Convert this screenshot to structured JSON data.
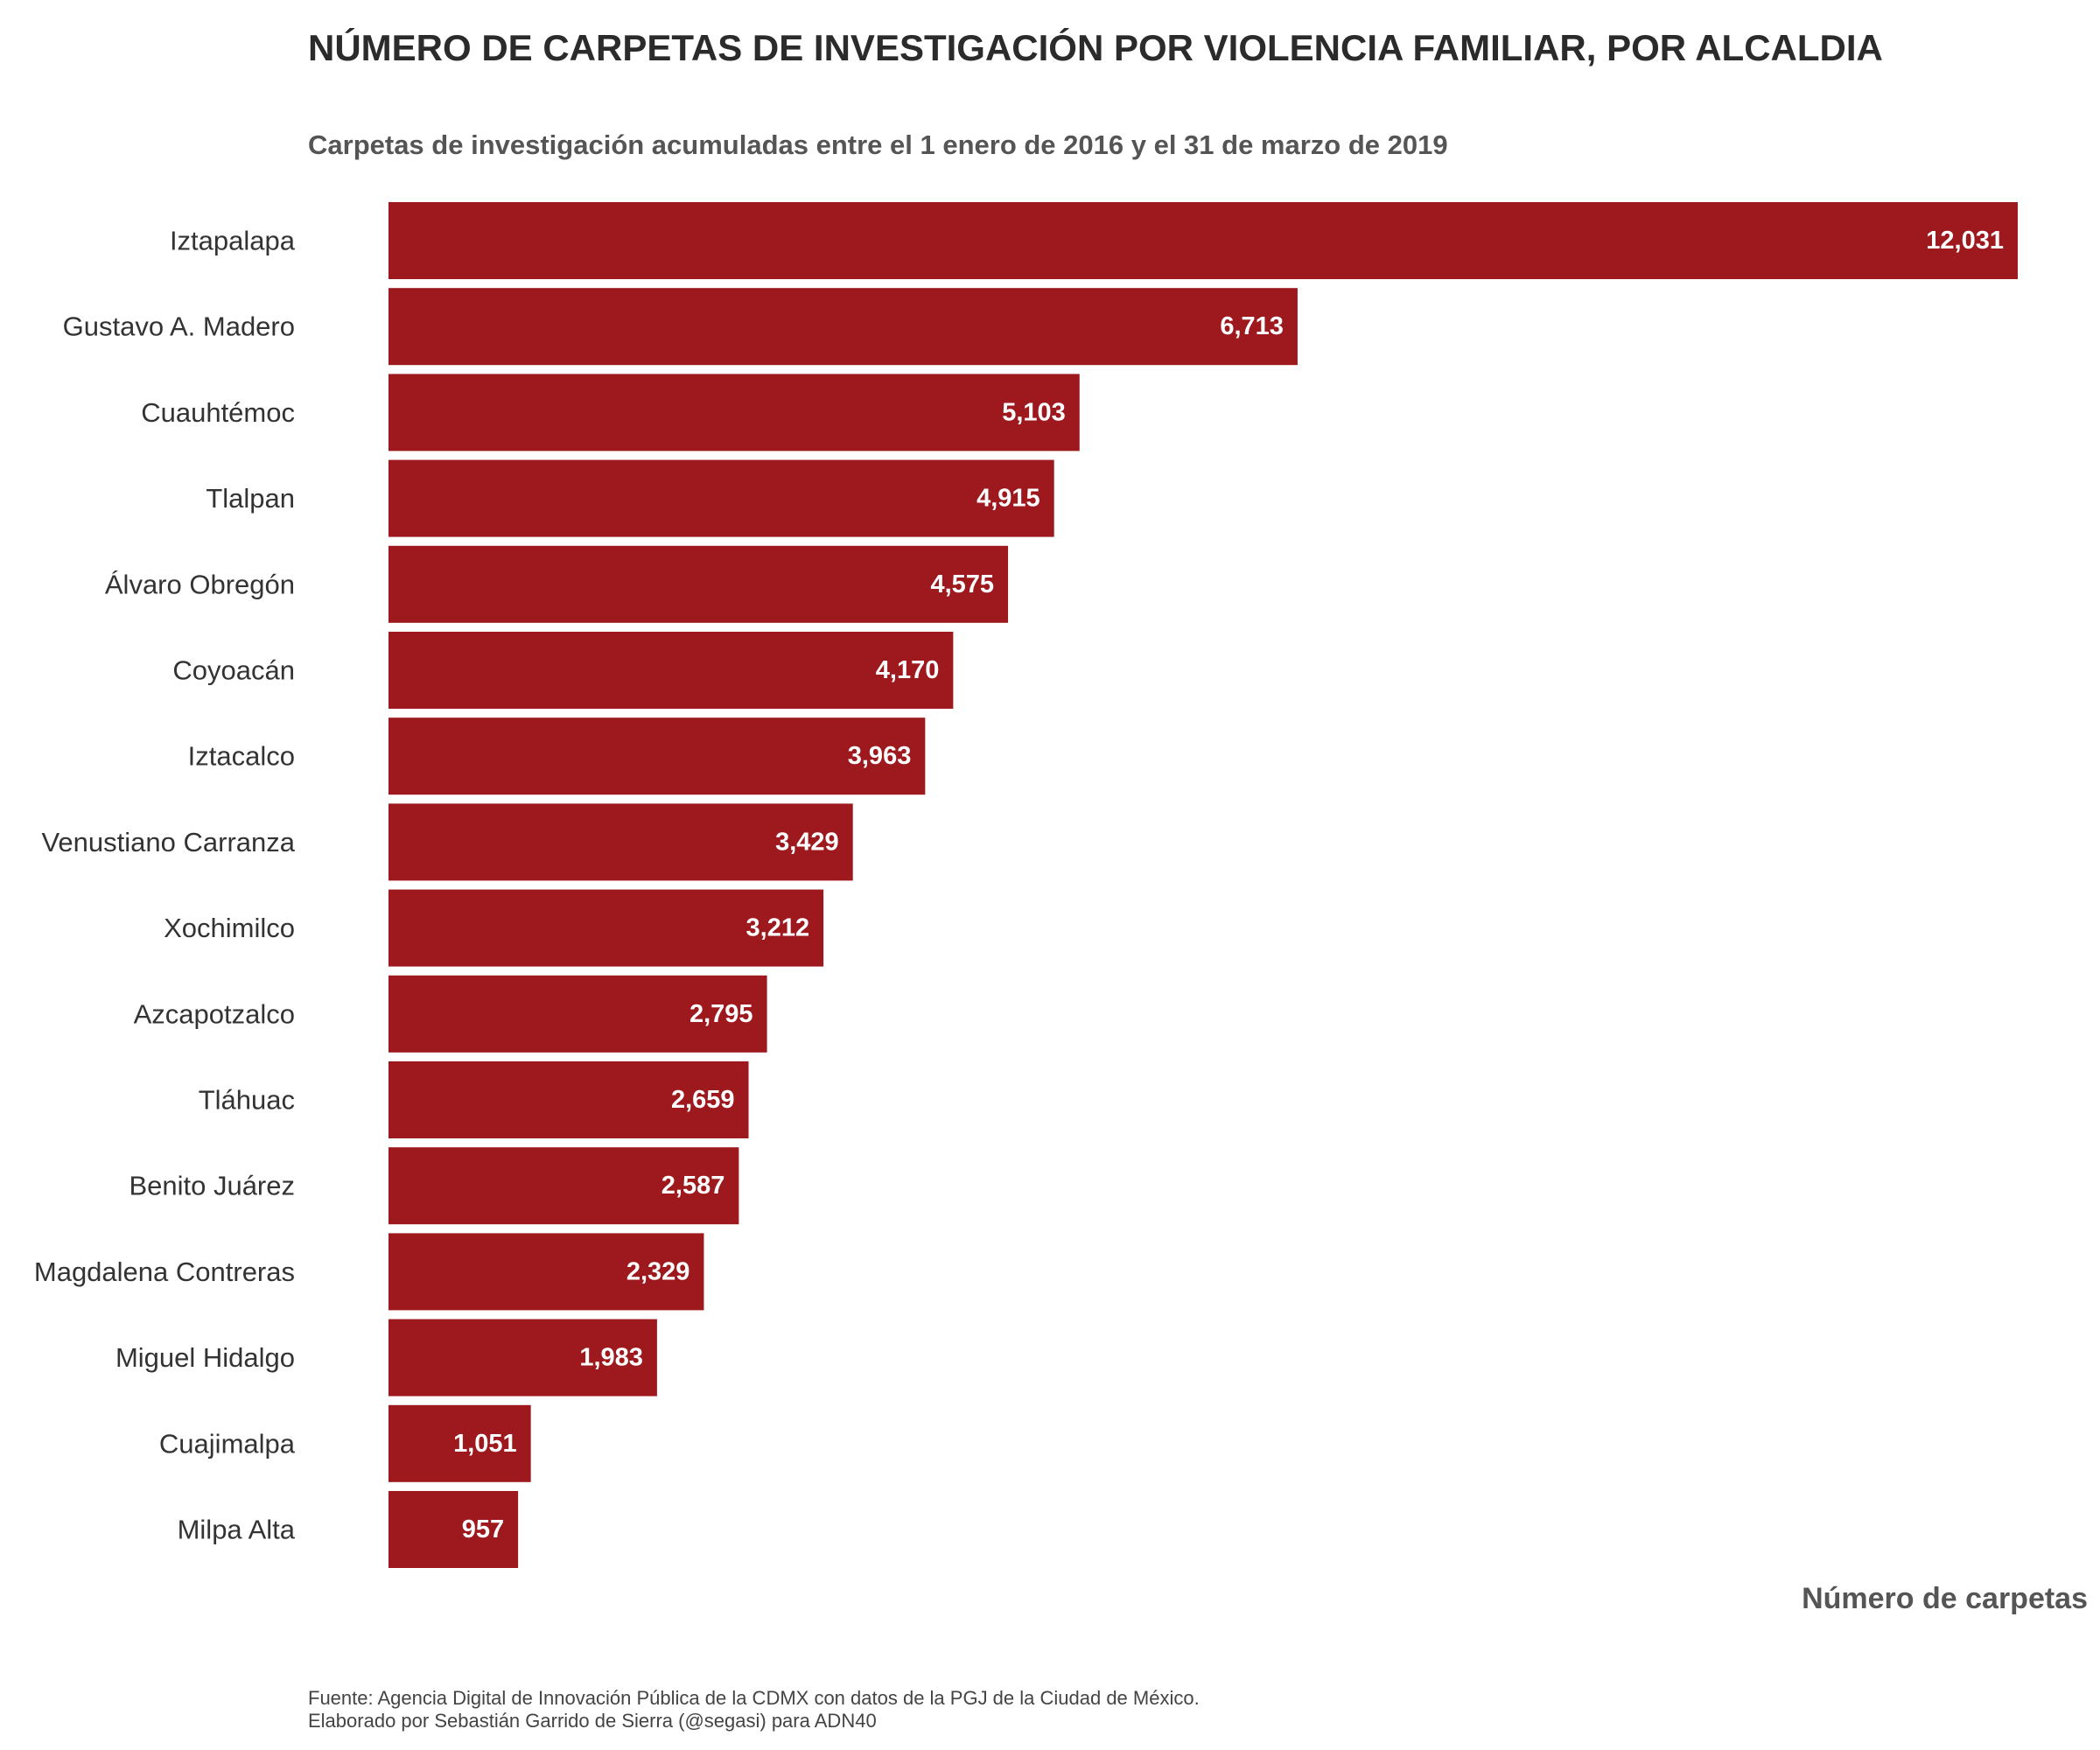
{
  "chart_data": {
    "type": "bar",
    "orientation": "horizontal",
    "title": "NÚMERO DE CARPETAS DE INVESTIGACIÓN POR VIOLENCIA FAMILIAR, POR ALCALDIA",
    "subtitle": "Carpetas de investigación acumuladas entre el 1 enero de 2016 y el 31 de marzo de 2019",
    "xlabel": "Número de carpetas",
    "ylabel": "",
    "categories": [
      "Iztapalapa",
      "Gustavo A. Madero",
      "Cuauhtémoc",
      "Tlalpan",
      "Álvaro Obregón",
      "Coyoacán",
      "Iztacalco",
      "Venustiano Carranza",
      "Xochimilco",
      "Azcapotzalco",
      "Tláhuac",
      "Benito Juárez",
      "Magdalena Contreras",
      "Miguel Hidalgo",
      "Cuajimalpa",
      "Milpa Alta"
    ],
    "values": [
      12031,
      6713,
      5103,
      4915,
      4575,
      4170,
      3963,
      3429,
      3212,
      2795,
      2659,
      2587,
      2329,
      1983,
      1051,
      957
    ],
    "value_labels": [
      "12,031",
      "6,713",
      "5,103",
      "4,915",
      "4,575",
      "4,170",
      "3,963",
      "3,429",
      "3,212",
      "2,795",
      "2,659",
      "2,587",
      "2,329",
      "1,983",
      "1,051",
      "957"
    ],
    "xlim": [
      0,
      12031
    ],
    "grid": false,
    "legend": "none",
    "bar_color": "#9e191e",
    "caption": [
      "Fuente: Agencia Digital de Innovación Pública de la CDMX con datos de la PGJ de la Ciudad de México.",
      "Elaborado por Sebastián Garrido de Sierra (@segasi) para ADN40"
    ]
  }
}
